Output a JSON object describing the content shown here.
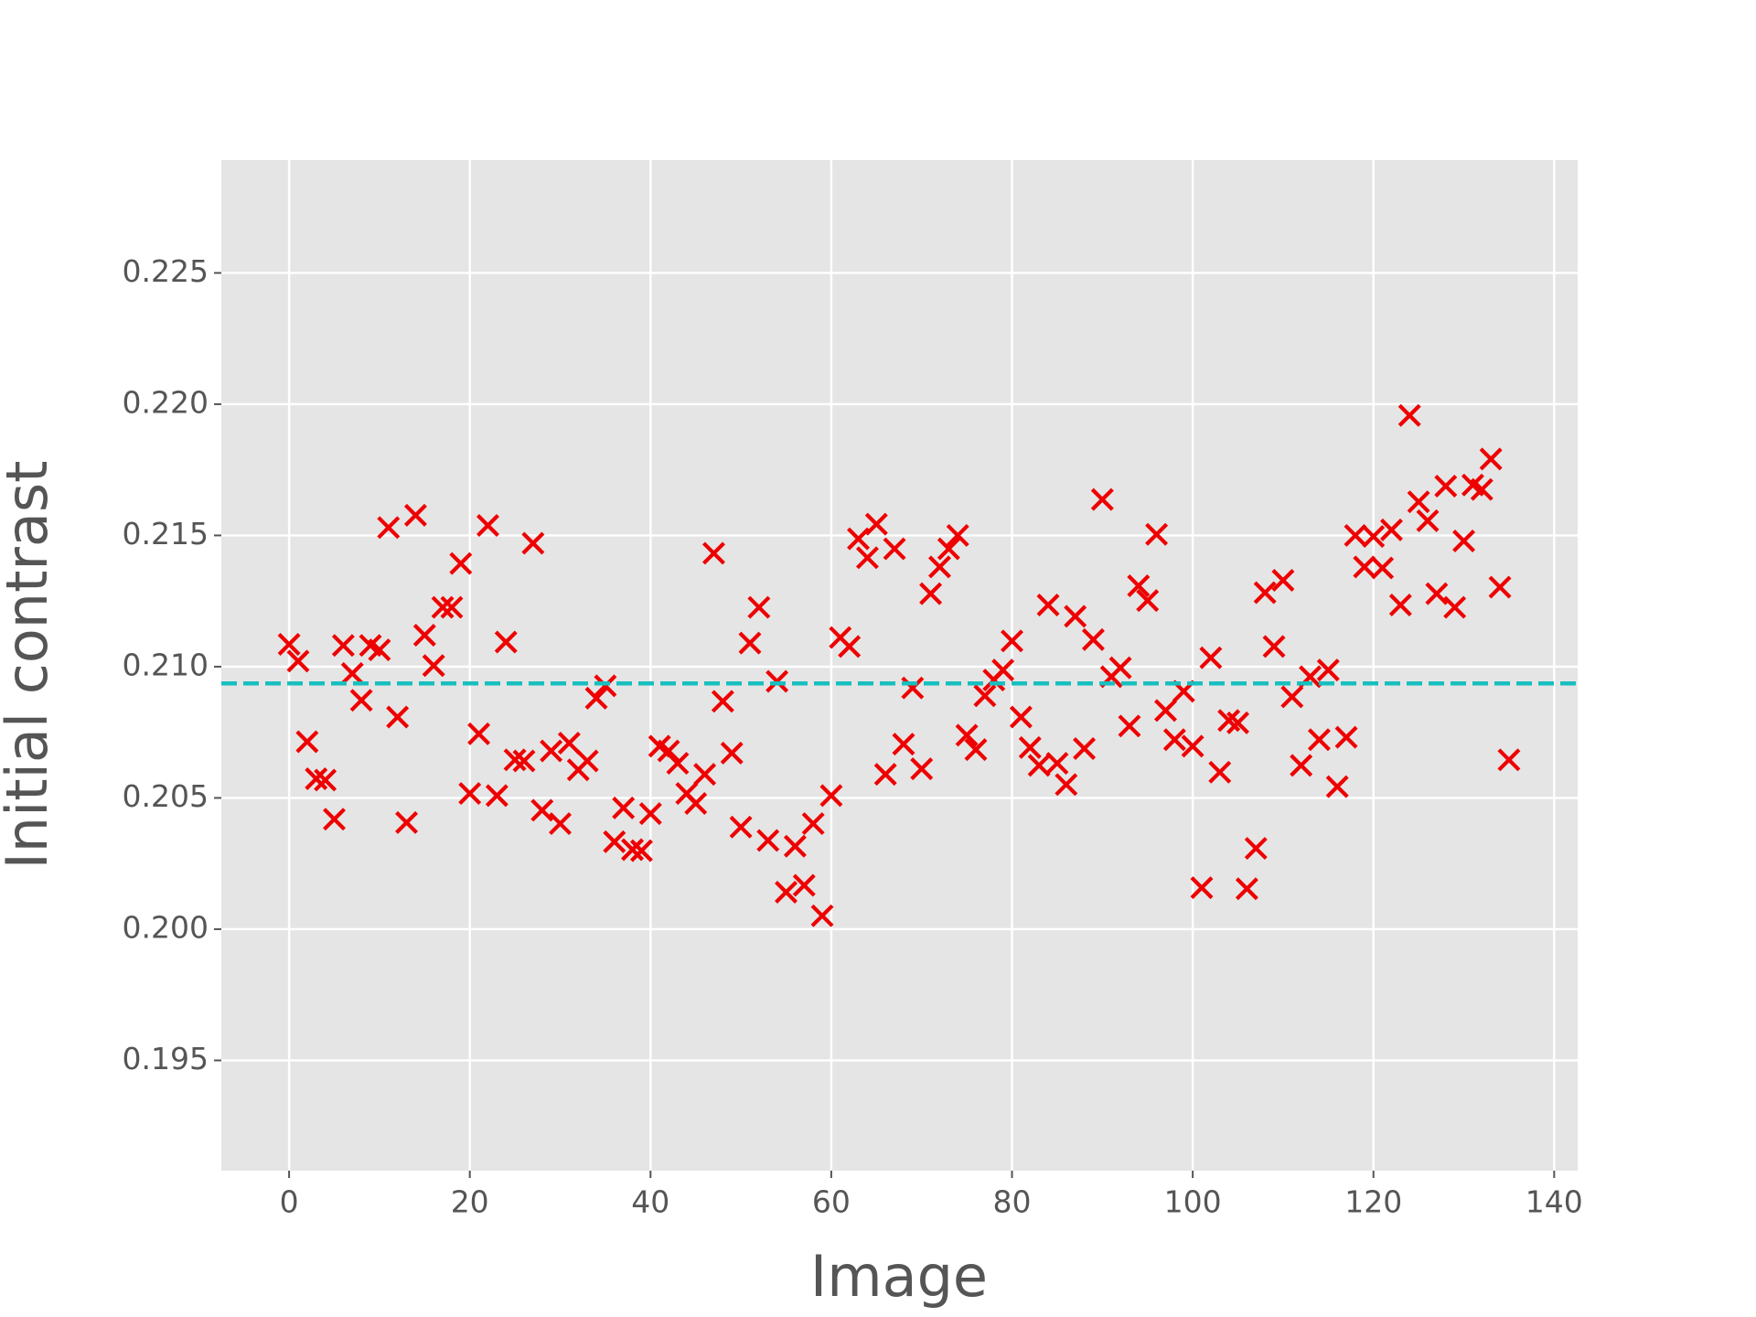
{
  "chart_data": {
    "type": "scatter",
    "xlabel": "Image",
    "ylabel": "Initial contrast",
    "x": [
      0,
      1,
      2,
      3,
      4,
      5,
      6,
      7,
      8,
      9,
      10,
      11,
      12,
      13,
      14,
      15,
      16,
      17,
      18,
      19,
      20,
      21,
      22,
      23,
      24,
      25,
      26,
      27,
      28,
      29,
      30,
      31,
      32,
      33,
      34,
      35,
      36,
      37,
      38,
      39,
      40,
      41,
      42,
      43,
      44,
      45,
      46,
      47,
      48,
      49,
      50,
      51,
      52,
      53,
      54,
      55,
      56,
      57,
      58,
      59,
      60,
      61,
      62,
      63,
      64,
      65,
      66,
      67,
      68,
      69,
      70,
      71,
      72,
      73,
      74,
      75,
      76,
      77,
      78,
      79,
      80,
      81,
      82,
      83,
      84,
      85,
      86,
      87,
      88,
      89,
      90,
      91,
      92,
      93,
      94,
      95,
      96,
      97,
      98,
      99,
      100,
      101,
      102,
      103,
      104,
      105,
      106,
      107,
      108,
      109,
      110,
      111,
      112,
      113,
      114,
      115,
      116,
      117,
      118,
      119,
      120,
      121,
      122,
      123,
      124,
      125,
      126,
      127,
      128,
      129,
      130,
      131,
      132,
      133,
      134,
      135
    ],
    "values": [
      0.21085,
      0.21021,
      0.20714,
      0.20573,
      0.20568,
      0.20419,
      0.21081,
      0.20974,
      0.20872,
      0.21081,
      0.21064,
      0.2153,
      0.20808,
      0.20406,
      0.21577,
      0.2112,
      0.21004,
      0.21226,
      0.21226,
      0.21393,
      0.20517,
      0.20744,
      0.21538,
      0.20509,
      0.21094,
      0.20645,
      0.20641,
      0.2147,
      0.20453,
      0.20679,
      0.20402,
      0.20709,
      0.20607,
      0.20641,
      0.2088,
      0.20927,
      0.20333,
      0.20462,
      0.20303,
      0.20299,
      0.2044,
      0.20697,
      0.20679,
      0.20632,
      0.20517,
      0.20479,
      0.2059,
      0.21432,
      0.20868,
      0.20671,
      0.20389,
      0.2109,
      0.21226,
      0.20338,
      0.20944,
      0.20141,
      0.20316,
      0.20167,
      0.20402,
      0.20051,
      0.20509,
      0.21111,
      0.21077,
      0.21487,
      0.21415,
      0.21543,
      0.2059,
      0.21449,
      0.20705,
      0.20919,
      0.20611,
      0.21278,
      0.2138,
      0.21449,
      0.215,
      0.20739,
      0.20684,
      0.20889,
      0.20949,
      0.20987,
      0.21098,
      0.20808,
      0.20692,
      0.20624,
      0.21235,
      0.20632,
      0.20551,
      0.21192,
      0.20688,
      0.21103,
      0.21637,
      0.20962,
      0.20996,
      0.20774,
      0.21308,
      0.21252,
      0.21504,
      0.20833,
      0.20722,
      0.20906,
      0.20697,
      0.20158,
      0.21034,
      0.20598,
      0.20795,
      0.20786,
      0.20154,
      0.20308,
      0.21282,
      0.21077,
      0.21329,
      0.20885,
      0.20624,
      0.20962,
      0.20722,
      0.20987,
      0.20543,
      0.20731,
      0.215,
      0.2138,
      0.21496,
      0.21376,
      0.21521,
      0.21235,
      0.21957,
      0.21628,
      0.21556,
      0.21278,
      0.21688,
      0.21226,
      0.21479,
      0.21692,
      0.21675,
      0.21791,
      0.21303,
      0.20645
    ],
    "color": "#ee0000",
    "hline": {
      "value": 0.20936,
      "color": "#17bfbf"
    },
    "xlim": [
      -7.5,
      142.6
    ],
    "ylim": [
      0.1908,
      0.2293
    ],
    "xticks": [
      0,
      20,
      40,
      60,
      80,
      100,
      120,
      140
    ],
    "yticks": [
      0.195,
      {
        "value": 0.2,
        "label": "0.200"
      },
      0.205,
      {
        "value": 0.21,
        "label": "0.210"
      },
      0.215,
      {
        "value": 0.22,
        "label": "0.220"
      },
      0.225
    ],
    "grid": true
  }
}
